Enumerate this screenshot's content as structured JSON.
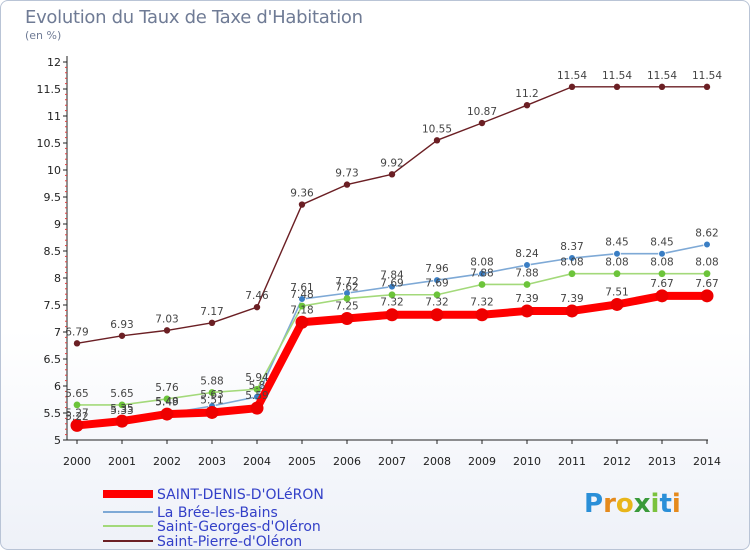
{
  "title": "Evolution du Taux de Taxe d'Habitation",
  "unit_label": "(en %)",
  "logo": {
    "text": "Proxiti",
    "letters": [
      "P",
      "r",
      "o",
      "x",
      "i",
      "t",
      "i"
    ],
    "colors": [
      "#2a8fd8",
      "#e58a1c",
      "#e8b51a",
      "#3a9a3a",
      "#7bc23e",
      "#2a8fd8",
      "#e58a1c"
    ]
  },
  "chart_data": {
    "type": "line",
    "title": "Evolution du Taux de Taxe d'Habitation",
    "ylabel": "(en %)",
    "xlabel": "",
    "x": [
      "2000",
      "2001",
      "2002",
      "2003",
      "2004",
      "2005",
      "2006",
      "2007",
      "2008",
      "2009",
      "2010",
      "2011",
      "2012",
      "2013",
      "2014"
    ],
    "ylim": [
      5,
      12
    ],
    "yticks": [
      "5",
      "5.5",
      "6",
      "6.5",
      "7",
      "7.5",
      "8",
      "8.5",
      "9",
      "9.5",
      "10",
      "10.5",
      "11",
      "11.5",
      "12"
    ],
    "grid": false,
    "legend_position": "bottom-left",
    "series": [
      {
        "name": "Saint-Pierre-d'Oléron",
        "color": "#6b1f24",
        "width": 1.4,
        "marker_r": 3.2,
        "values": [
          6.79,
          6.93,
          7.03,
          7.17,
          7.46,
          9.36,
          9.73,
          9.92,
          10.55,
          10.87,
          11.2,
          11.54,
          11.54,
          11.54,
          11.54
        ],
        "labels": [
          "6.79",
          "6.93",
          "7.03",
          "7.17",
          "7.46",
          "9.36",
          "9.73",
          "9.92",
          "10.55",
          "10.87",
          "11.2",
          "11.54",
          "11.54",
          "11.54",
          "11.54"
        ]
      },
      {
        "name": "La Brée-les-Bains",
        "color": "#7ea9d6",
        "marker_color": "#3a7ec4",
        "width": 1.6,
        "marker_r": 3.4,
        "values": [
          5.22,
          5.33,
          5.49,
          5.63,
          5.8,
          7.61,
          7.72,
          7.84,
          7.96,
          8.08,
          8.24,
          8.37,
          8.45,
          8.45,
          8.62
        ],
        "labels": [
          "5.22",
          "5.33",
          "5.49",
          "5.63",
          "5.8",
          "7.61",
          "7.72",
          "7.84",
          "7.96",
          "8.08",
          "8.24",
          "8.37",
          "8.45",
          "8.45",
          "8.62"
        ]
      },
      {
        "name": "Saint-Georges-d'Oléron",
        "color": "#a3d97a",
        "marker_color": "#6cc43a",
        "width": 1.6,
        "marker_r": 3.4,
        "values": [
          5.65,
          5.65,
          5.76,
          5.88,
          5.94,
          7.48,
          7.62,
          7.69,
          7.69,
          7.88,
          7.88,
          8.08,
          8.08,
          8.08,
          8.08
        ],
        "labels": [
          "5.65",
          "5.65",
          "5.76",
          "5.88",
          "5.94",
          "7.48",
          "7.62",
          "7.69",
          "7.69",
          "7.88",
          "7.88",
          "8.08",
          "8.08",
          "8.08",
          "8.08"
        ]
      },
      {
        "name": "SAINT-DENIS-D'OLéRON",
        "color": "#ff0000",
        "marker_color": "#ee0000",
        "width": 8,
        "marker_r": 6.5,
        "values": [
          5.27,
          5.35,
          5.48,
          5.51,
          5.59,
          7.18,
          7.25,
          7.32,
          7.32,
          7.32,
          7.39,
          7.39,
          7.51,
          7.67,
          7.67
        ],
        "labels": [
          "5.27",
          "5.35",
          "5.48",
          "5.51",
          "5.59",
          "7.18",
          "7.25",
          "7.32",
          "7.32",
          "7.32",
          "7.39",
          "7.39",
          "7.51",
          "7.67",
          "7.67"
        ]
      }
    ],
    "legend": [
      {
        "name": "SAINT-DENIS-D'OLéRON",
        "color": "#ff0000",
        "width": 8
      },
      {
        "name": "La Brée-les-Bains",
        "color": "#7ea9d6",
        "width": 2
      },
      {
        "name": "Saint-Georges-d'Oléron",
        "color": "#a3d97a",
        "width": 2
      },
      {
        "name": "Saint-Pierre-d'Oléron",
        "color": "#6b1f24",
        "width": 2
      }
    ]
  }
}
